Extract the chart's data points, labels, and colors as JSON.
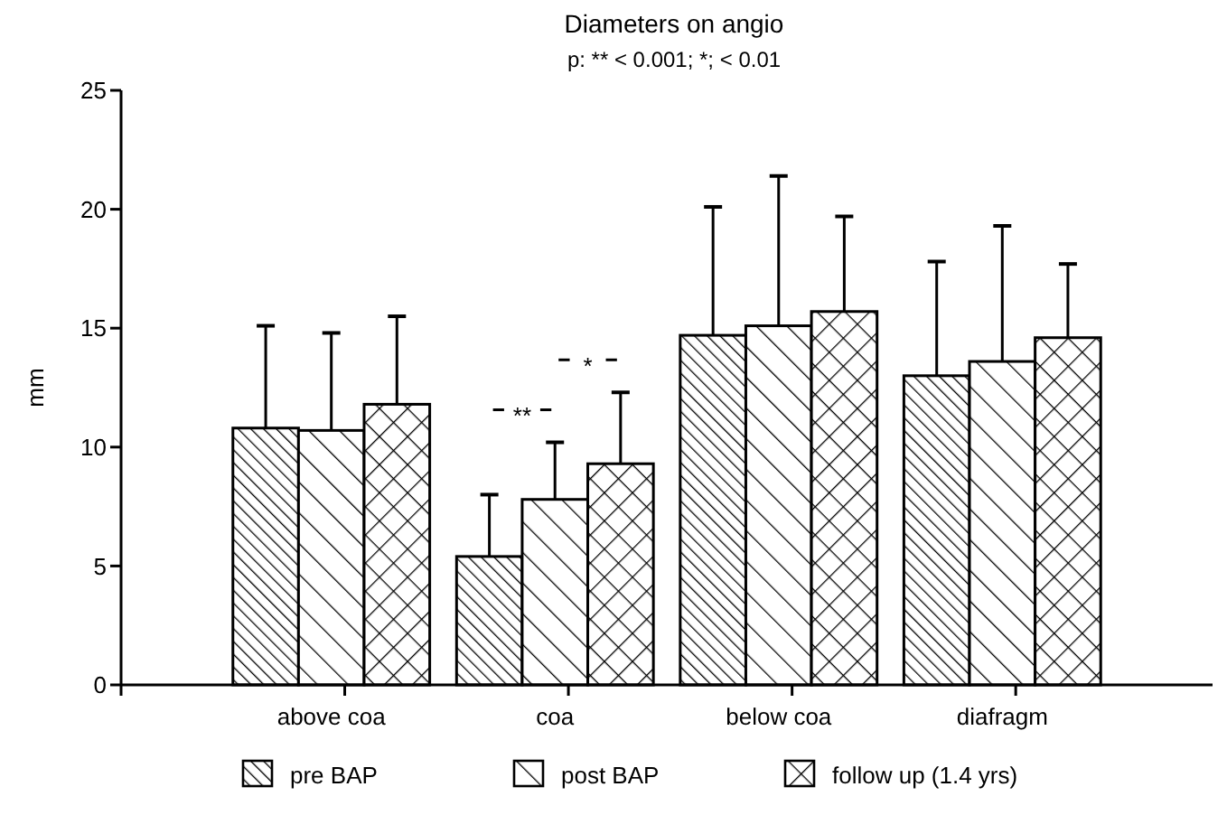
{
  "chart_data": {
    "type": "bar",
    "title": "Diameters on angio",
    "subtitle": "p: ** < 0.001;  *; < 0.01",
    "ylabel": "mm",
    "categories": [
      "above coa",
      "coa",
      "below coa",
      "diafragm"
    ],
    "series": [
      {
        "name": "pre BAP",
        "color": "#000000",
        "values": [
          10.8,
          5.4,
          14.7,
          13.0
        ],
        "errors": [
          [
            10.8,
            15.1
          ],
          [
            5.4,
            8.0
          ],
          [
            14.7,
            20.1
          ],
          [
            13.0,
            17.8
          ]
        ]
      },
      {
        "name": "post BAP",
        "color": "#000000",
        "values": [
          10.7,
          7.8,
          15.1,
          13.6
        ],
        "errors": [
          [
            10.7,
            14.8
          ],
          [
            7.8,
            10.2
          ],
          [
            15.1,
            21.4
          ],
          [
            13.6,
            19.3
          ]
        ]
      },
      {
        "name": "follow up (1.4 yrs)",
        "color": "#000000",
        "values": [
          11.8,
          9.3,
          15.7,
          14.6
        ],
        "errors": [
          [
            11.8,
            15.5
          ],
          [
            9.3,
            12.3
          ],
          [
            15.7,
            19.7
          ],
          [
            14.6,
            17.7
          ]
        ]
      }
    ],
    "annotations": [
      "**",
      "*"
    ],
    "ylim": [
      0,
      25
    ],
    "yticks": [
      0,
      5,
      10,
      15,
      20,
      25
    ],
    "grid": false,
    "legend": "bottom"
  }
}
